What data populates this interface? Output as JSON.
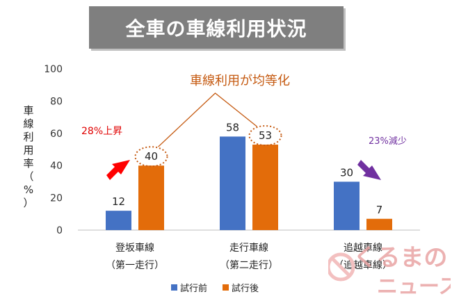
{
  "title": "全車の車線利用状況",
  "ylabel": "車線利用率（%）",
  "annotation_main": "車線利用が均等化",
  "annotation_up": "28%上昇",
  "annotation_down": "23%減少",
  "watermark": {
    "line1": "くるまの",
    "line2": "ニュース"
  },
  "colors": {
    "before": "#4472c4",
    "after": "#e36c0a",
    "up_arrow": "#ff0000",
    "down_arrow": "#7030a0",
    "annotation": "#c55a11"
  },
  "chart_data": {
    "type": "bar",
    "categories": [
      [
        "登坂車線",
        "（第一走行）"
      ],
      [
        "走行車線",
        "（第二走行）"
      ],
      [
        "追越車線",
        "（追越車線）"
      ]
    ],
    "series": [
      {
        "name": "試行前",
        "values": [
          12,
          58,
          30
        ]
      },
      {
        "name": "試行後",
        "values": [
          40,
          53,
          7
        ]
      }
    ],
    "title": "全車の車線利用状況",
    "ylabel": "車線利用率（%）",
    "ylim": [
      0,
      100
    ],
    "yticks": [
      0,
      20,
      40,
      60,
      80,
      100
    ],
    "grid": false,
    "legend": "bottom"
  }
}
